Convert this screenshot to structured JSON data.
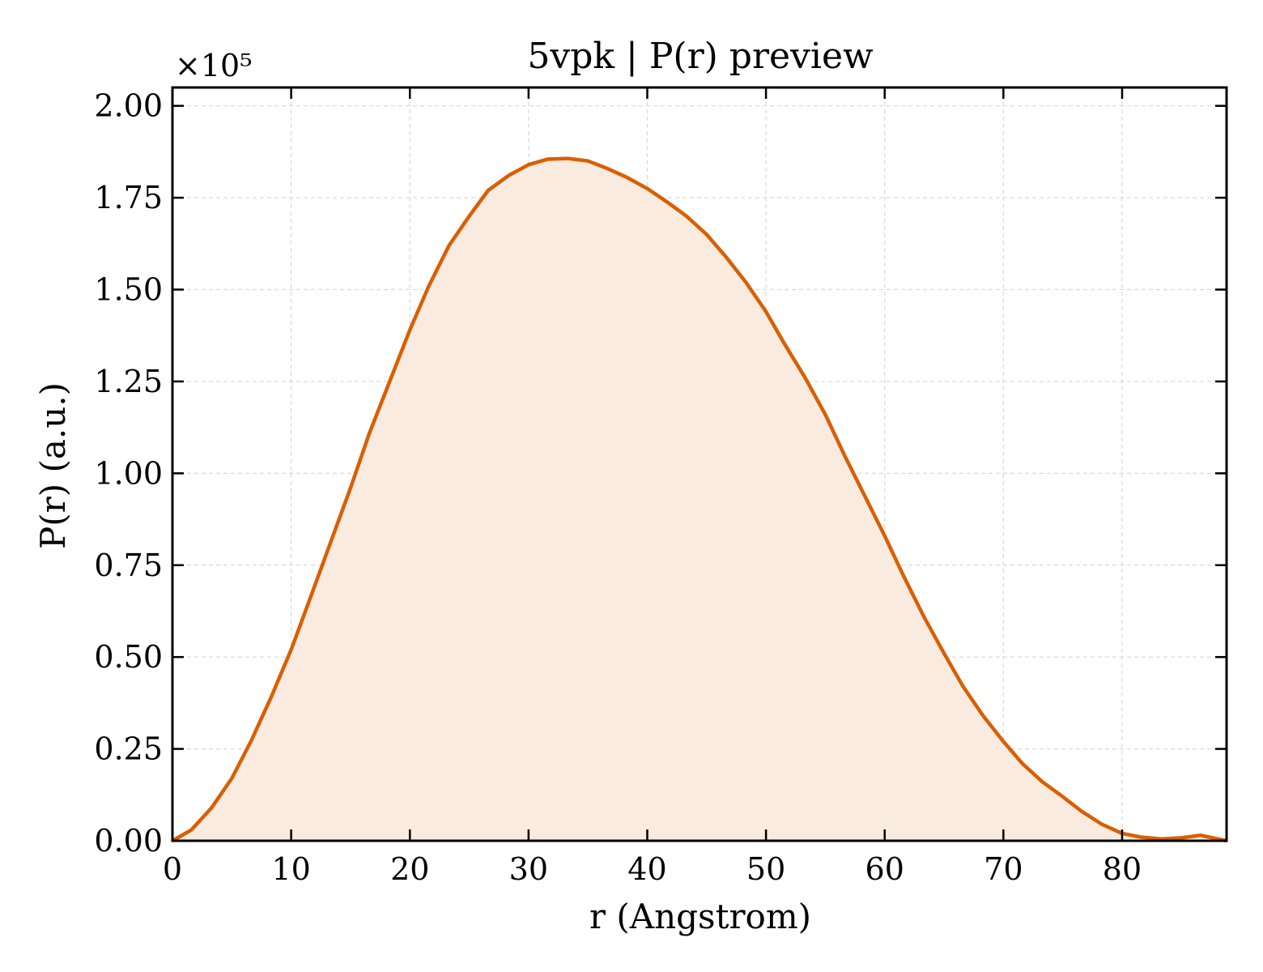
{
  "chart_data": {
    "type": "area",
    "title": "5vpk | P(r) preview",
    "xlabel": "r (Angstrom)",
    "ylabel": "P(r) (a.u.)",
    "y_multiplier_label": "×10⁵",
    "xlim": [
      0,
      88.8
    ],
    "ylim": [
      0,
      2.05
    ],
    "y_scale_note": "values in units of 1e5",
    "xticks": [
      0,
      10,
      20,
      30,
      40,
      50,
      60,
      70,
      80
    ],
    "xtick_labels": [
      "0",
      "10",
      "20",
      "30",
      "40",
      "50",
      "60",
      "70",
      "80"
    ],
    "yticks": [
      0,
      0.25,
      0.5,
      0.75,
      1.0,
      1.25,
      1.5,
      1.75,
      2.0
    ],
    "ytick_labels": [
      "0.00",
      "0.25",
      "0.50",
      "0.75",
      "1.00",
      "1.25",
      "1.50",
      "1.75",
      "2.00"
    ],
    "grid": true,
    "legend": "none",
    "colors": {
      "line": "#d95f02",
      "fill": "#f9ebe0",
      "grid": "#d8d8d8"
    },
    "series": [
      {
        "x": [
          0,
          1.6,
          3.3,
          5.0,
          6.6,
          8.3,
          10.0,
          11.6,
          13.3,
          15.0,
          16.6,
          18.3,
          20.0,
          21.6,
          23.3,
          25.0,
          26.6,
          28.3,
          30.0,
          31.6,
          33.3,
          35.0,
          36.6,
          38.3,
          40.0,
          41.6,
          43.3,
          45.0,
          46.6,
          48.3,
          50.0,
          51.6,
          53.3,
          55.0,
          56.6,
          58.3,
          60.0,
          61.6,
          63.3,
          65.0,
          66.6,
          68.3,
          70.0,
          71.6,
          73.3,
          75.0,
          76.6,
          78.3,
          80.0,
          81.6,
          83.3,
          85.0,
          86.6,
          88.8
        ],
        "y": [
          0.0,
          0.03,
          0.09,
          0.17,
          0.27,
          0.39,
          0.52,
          0.66,
          0.81,
          0.96,
          1.11,
          1.25,
          1.39,
          1.51,
          1.62,
          1.7,
          1.77,
          1.81,
          1.84,
          1.855,
          1.857,
          1.85,
          1.83,
          1.805,
          1.775,
          1.74,
          1.7,
          1.65,
          1.59,
          1.52,
          1.44,
          1.35,
          1.26,
          1.16,
          1.05,
          0.94,
          0.83,
          0.72,
          0.61,
          0.51,
          0.42,
          0.34,
          0.27,
          0.21,
          0.16,
          0.12,
          0.08,
          0.045,
          0.02,
          0.01,
          0.005,
          0.008,
          0.015,
          0.0
        ]
      }
    ]
  }
}
